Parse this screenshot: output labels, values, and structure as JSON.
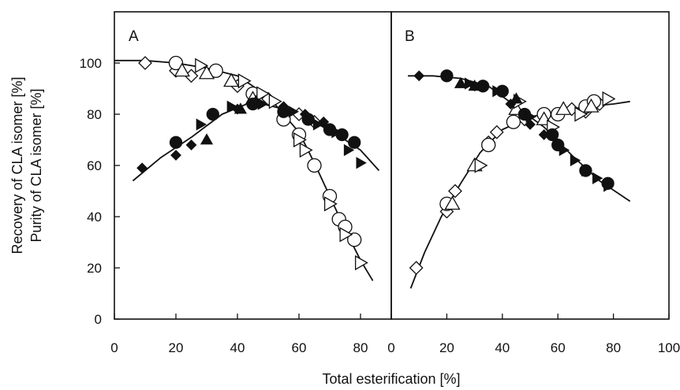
{
  "chart_data": [
    {
      "panel": "A",
      "type": "scatter",
      "xlim": [
        0,
        90
      ],
      "ylim": [
        0,
        120
      ],
      "x_ticks": [
        "0",
        "20",
        "40",
        "60",
        "80"
      ],
      "y_ticks": [
        "0",
        "20",
        "40",
        "60",
        "80",
        "100"
      ],
      "grid": false,
      "series": [
        {
          "marker": "open-diamond",
          "points": [
            [
              10,
              100
            ],
            [
              20,
              97
            ],
            [
              25,
              95
            ],
            [
              40,
              91
            ],
            [
              50,
              86
            ],
            [
              60,
              80
            ],
            [
              65,
              77
            ]
          ]
        },
        {
          "marker": "open-circle",
          "points": [
            [
              20,
              100
            ],
            [
              33,
              97
            ],
            [
              45,
              88
            ],
            [
              55,
              78
            ],
            [
              60,
              72
            ],
            [
              65,
              60
            ],
            [
              70,
              48
            ],
            [
              73,
              39
            ],
            [
              75,
              36
            ],
            [
              78,
              31
            ]
          ]
        },
        {
          "marker": "open-triangle-up",
          "points": [
            [
              22,
              97
            ],
            [
              30,
              96
            ],
            [
              38,
              93
            ],
            [
              45,
              86
            ]
          ]
        },
        {
          "marker": "open-triangle-right",
          "points": [
            [
              28,
              99
            ],
            [
              42,
              93
            ],
            [
              48,
              88
            ],
            [
              52,
              85
            ],
            [
              60,
              70
            ],
            [
              62,
              66
            ],
            [
              70,
              45
            ],
            [
              75,
              33
            ],
            [
              80,
              22
            ]
          ]
        },
        {
          "marker": "filled-diamond",
          "points": [
            [
              9,
              59
            ],
            [
              20,
              64
            ],
            [
              25,
              68
            ],
            [
              40,
              82
            ],
            [
              55,
              83
            ],
            [
              62,
              80
            ],
            [
              68,
              77
            ]
          ]
        },
        {
          "marker": "filled-circle",
          "points": [
            [
              20,
              69
            ],
            [
              32,
              80
            ],
            [
              45,
              84
            ],
            [
              55,
              81
            ],
            [
              63,
              78
            ],
            [
              70,
              74
            ],
            [
              74,
              72
            ],
            [
              78,
              69
            ]
          ]
        },
        {
          "marker": "filled-triangle-up",
          "points": [
            [
              30,
              70
            ],
            [
              41,
              82
            ],
            [
              46,
              85
            ]
          ]
        },
        {
          "marker": "filled-triangle-right",
          "points": [
            [
              28,
              76
            ],
            [
              38,
              83
            ],
            [
              48,
              84
            ],
            [
              58,
              81
            ],
            [
              66,
              76
            ],
            [
              72,
              73
            ],
            [
              76,
              66
            ],
            [
              80,
              61
            ]
          ]
        }
      ],
      "fit_curves": [
        {
          "name": "purity",
          "points": [
            [
              0,
              101
            ],
            [
              10,
              101
            ],
            [
              20,
              100
            ],
            [
              30,
              98
            ],
            [
              40,
              95
            ],
            [
              50,
              87
            ],
            [
              60,
              73
            ],
            [
              65,
              61
            ],
            [
              70,
              48
            ],
            [
              75,
              35
            ],
            [
              80,
              23
            ],
            [
              84,
              15
            ]
          ]
        },
        {
          "name": "recovery",
          "points": [
            [
              6,
              54
            ],
            [
              15,
              63
            ],
            [
              25,
              71
            ],
            [
              35,
              80
            ],
            [
              45,
              85
            ],
            [
              55,
              82
            ],
            [
              65,
              77
            ],
            [
              75,
              70
            ],
            [
              80,
              66
            ],
            [
              86,
              58
            ]
          ]
        }
      ]
    },
    {
      "panel": "B",
      "type": "scatter",
      "xlim": [
        0,
        100
      ],
      "ylim": [
        0,
        120
      ],
      "x_ticks": [
        "0",
        "20",
        "40",
        "60",
        "80",
        "100"
      ],
      "y_ticks": [],
      "grid": false,
      "series": [
        {
          "marker": "open-diamond",
          "points": [
            [
              9,
              20
            ],
            [
              20,
              42
            ],
            [
              23,
              50
            ],
            [
              35,
              69
            ],
            [
              38,
              73
            ],
            [
              48,
              78
            ],
            [
              55,
              79
            ],
            [
              65,
              82
            ],
            [
              70,
              81
            ],
            [
              75,
              84
            ]
          ]
        },
        {
          "marker": "open-circle",
          "points": [
            [
              20,
              45
            ],
            [
              35,
              68
            ],
            [
              44,
              77
            ],
            [
              55,
              80
            ],
            [
              60,
              80
            ],
            [
              70,
              83
            ],
            [
              73,
              85
            ]
          ]
        },
        {
          "marker": "open-triangle-up",
          "points": [
            [
              22,
              45
            ],
            [
              30,
              60
            ],
            [
              45,
              82
            ],
            [
              55,
              78
            ],
            [
              62,
              82
            ],
            [
              72,
              83
            ]
          ]
        },
        {
          "marker": "open-triangle-right",
          "points": [
            [
              32,
              60
            ],
            [
              46,
              85
            ],
            [
              58,
              75
            ],
            [
              68,
              80
            ],
            [
              78,
              86
            ]
          ]
        },
        {
          "marker": "filled-diamond",
          "points": [
            [
              10,
              95
            ],
            [
              30,
              91
            ],
            [
              43,
              84
            ],
            [
              50,
              76
            ],
            [
              55,
              72
            ]
          ]
        },
        {
          "marker": "filled-circle",
          "points": [
            [
              20,
              95
            ],
            [
              33,
              91
            ],
            [
              40,
              89
            ],
            [
              48,
              80
            ],
            [
              58,
              72
            ],
            [
              60,
              68
            ],
            [
              70,
              58
            ],
            [
              78,
              53
            ]
          ]
        },
        {
          "marker": "filled-triangle-up",
          "points": [
            [
              25,
              92
            ],
            [
              30,
              91
            ],
            [
              45,
              86
            ]
          ]
        },
        {
          "marker": "filled-triangle-right",
          "points": [
            [
              28,
              92
            ],
            [
              38,
              89
            ],
            [
              50,
              79
            ],
            [
              62,
              66
            ],
            [
              66,
              62
            ],
            [
              70,
              58
            ],
            [
              74,
              55
            ],
            [
              78,
              52
            ]
          ]
        }
      ],
      "fit_curves": [
        {
          "name": "purity",
          "points": [
            [
              7,
              12
            ],
            [
              12,
              26
            ],
            [
              18,
              40
            ],
            [
              25,
              53
            ],
            [
              32,
              65
            ],
            [
              40,
              74
            ],
            [
              50,
              79
            ],
            [
              60,
              81
            ],
            [
              70,
              83
            ],
            [
              80,
              84
            ],
            [
              86,
              85
            ]
          ]
        },
        {
          "name": "recovery",
          "points": [
            [
              6,
              95
            ],
            [
              15,
              95
            ],
            [
              25,
              94
            ],
            [
              35,
              91
            ],
            [
              45,
              83
            ],
            [
              55,
              75
            ],
            [
              65,
              64
            ],
            [
              75,
              54
            ],
            [
              86,
              46
            ]
          ]
        }
      ]
    }
  ],
  "labels": {
    "panel_a": "A",
    "panel_b": "B",
    "y_title_outer": "Recovery of CLA isomer [%]",
    "y_title_inner": "Purity of CLA isomer [%]",
    "x_title": "Total esterification [%]"
  }
}
